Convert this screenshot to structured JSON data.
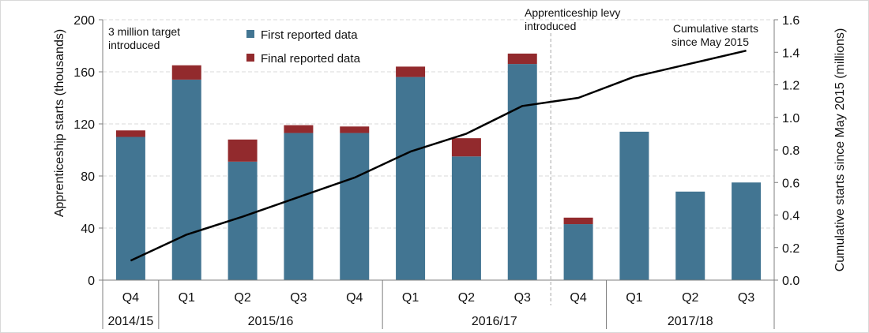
{
  "colors": {
    "first": "#427592",
    "final": "#922A2D",
    "line": "#000000",
    "grid": "#d9d9d9",
    "axis": "#7f7f7f"
  },
  "chart_data": {
    "type": "bar",
    "categories": [
      "Q4",
      "Q1",
      "Q2",
      "Q3",
      "Q4",
      "Q1",
      "Q2",
      "Q3",
      "Q4",
      "Q1",
      "Q2",
      "Q3"
    ],
    "year_groups": [
      {
        "label": "2014/15",
        "span": 1
      },
      {
        "label": "2015/16",
        "span": 4
      },
      {
        "label": "2016/17",
        "span": 4
      },
      {
        "label": "2017/18",
        "span": 3
      }
    ],
    "series": [
      {
        "name": "First reported data",
        "type": "bar",
        "stacked": true,
        "values": [
          110,
          154,
          91,
          113,
          113,
          156,
          95,
          166,
          43,
          114,
          68,
          75
        ]
      },
      {
        "name": "Final reported data",
        "type": "bar",
        "stacked": true,
        "values": [
          5,
          11,
          17,
          6,
          5,
          8,
          14,
          8,
          5,
          0,
          0,
          0
        ]
      },
      {
        "name": "Cumulative starts since May 2015",
        "type": "line",
        "axis": "right",
        "values": [
          0.12,
          0.28,
          0.39,
          0.51,
          0.63,
          0.79,
          0.9,
          1.07,
          1.12,
          1.25,
          1.33,
          1.41
        ]
      }
    ],
    "ylabel": "Apprenticeship starts (thousands)",
    "ylabel_right": "Cumulative starts since May 2015  (millions)",
    "ylim": [
      0,
      200
    ],
    "ylim_right": [
      0,
      1.6
    ],
    "yticks": [
      "0",
      "40",
      "80",
      "120",
      "160",
      "200"
    ],
    "yticks_right": [
      "0.0",
      "0.2",
      "0.4",
      "0.6",
      "0.8",
      "1.0",
      "1.2",
      "1.4",
      "1.6"
    ],
    "grid": true,
    "legend": [
      "First reported data",
      "Final reported data"
    ],
    "annotations": {
      "target": [
        "3 million target",
        "introduced"
      ],
      "levy": [
        "Apprenticeship levy",
        "introduced"
      ],
      "cumulative": [
        "Cumulative starts",
        "since May 2015"
      ]
    }
  }
}
